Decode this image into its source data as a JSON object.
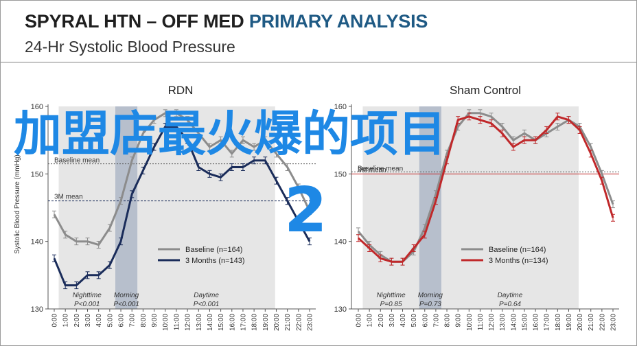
{
  "header": {
    "title_prefix": "SPYRAL HTN – OFF MED ",
    "title_highlight": "PRIMARY ANALYSIS",
    "subtitle": "24-Hr Systolic Blood Pressure"
  },
  "overlay": {
    "text": "加盟店最火爆的项目",
    "number": "2"
  },
  "colors": {
    "baseline": "#8c8c8c",
    "rdn_3m": "#1a2c5a",
    "sham_3m": "#c0282a",
    "band": "#e6e6e6",
    "morning_band": "#b7bfcc",
    "overlay": "#1e88e5"
  },
  "chart_data": [
    {
      "type": "line",
      "title": "RDN",
      "ylabel": "Systolic Blood Pressure (mmHg)",
      "ylim": [
        130,
        160
      ],
      "yticks": [
        130,
        140,
        150,
        160
      ],
      "x": [
        "0:00",
        "1:00",
        "2:00",
        "3:00",
        "4:00",
        "5:00",
        "6:00",
        "7:00",
        "8:00",
        "9:00",
        "10:00",
        "11:00",
        "12:00",
        "13:00",
        "14:00",
        "15:00",
        "16:00",
        "17:00",
        "18:00",
        "19:00",
        "20:00",
        "21:00",
        "22:00",
        "23:00"
      ],
      "series": [
        {
          "name": "Baseline (n=164)",
          "values": [
            144,
            141,
            140,
            140,
            139.5,
            142,
            146,
            152,
            156,
            158,
            159,
            159,
            158,
            156,
            154,
            155,
            153,
            155,
            154,
            155,
            153,
            151,
            148,
            144.5
          ]
        },
        {
          "name": "3 Months (n=143)",
          "values": [
            137.5,
            133.5,
            133.5,
            135,
            135,
            136.5,
            140,
            147,
            150.5,
            154,
            157,
            157,
            155,
            151,
            150,
            149.5,
            151,
            151,
            152,
            152,
            149,
            146,
            143,
            140
          ]
        }
      ],
      "reference_lines": [
        {
          "label": "Baseline mean",
          "value": 151.5
        },
        {
          "label": "3M mean",
          "value": 146
        }
      ],
      "periods": [
        {
          "label": "Nighttime",
          "p": "P<0.001"
        },
        {
          "label": "Morning",
          "p": "P<0.001"
        },
        {
          "label": "Daytime",
          "p": "P<0.001"
        }
      ],
      "legend": "center-right"
    },
    {
      "type": "line",
      "title": "Sham Control",
      "ylim": [
        130,
        160
      ],
      "yticks": [
        130,
        140,
        150,
        160
      ],
      "x": [
        "0:00",
        "1:00",
        "2:00",
        "3:00",
        "4:00",
        "5:00",
        "6:00",
        "7:00",
        "8:00",
        "9:00",
        "10:00",
        "11:00",
        "12:00",
        "13:00",
        "14:00",
        "15:00",
        "16:00",
        "17:00",
        "18:00",
        "19:00",
        "20:00",
        "21:00",
        "22:00",
        "23:00"
      ],
      "series": [
        {
          "name": "Baseline (n=164)",
          "values": [
            141.5,
            139.5,
            138,
            137,
            137,
            138.5,
            142,
            147,
            153,
            157,
            159,
            159,
            158.5,
            157,
            155,
            156,
            155,
            156,
            157,
            158,
            157,
            154,
            150,
            145.5
          ]
        },
        {
          "name": "3 Months (n=134)",
          "values": [
            140.5,
            139,
            137.5,
            137,
            137,
            139,
            141,
            146,
            152,
            158,
            158.5,
            158,
            157.5,
            156,
            154,
            155,
            155,
            156.5,
            158.5,
            158,
            156.5,
            153,
            149,
            143.5
          ]
        }
      ],
      "reference_lines": [
        {
          "label": "Baseline mean",
          "value": 150.3
        },
        {
          "label": "3M mean",
          "value": 150
        }
      ],
      "periods": [
        {
          "label": "Nighttime",
          "p": "P=0.85"
        },
        {
          "label": "Morning",
          "p": "P=0.73"
        },
        {
          "label": "Daytime",
          "p": "P=0.64"
        }
      ],
      "legend": "center-right"
    }
  ]
}
